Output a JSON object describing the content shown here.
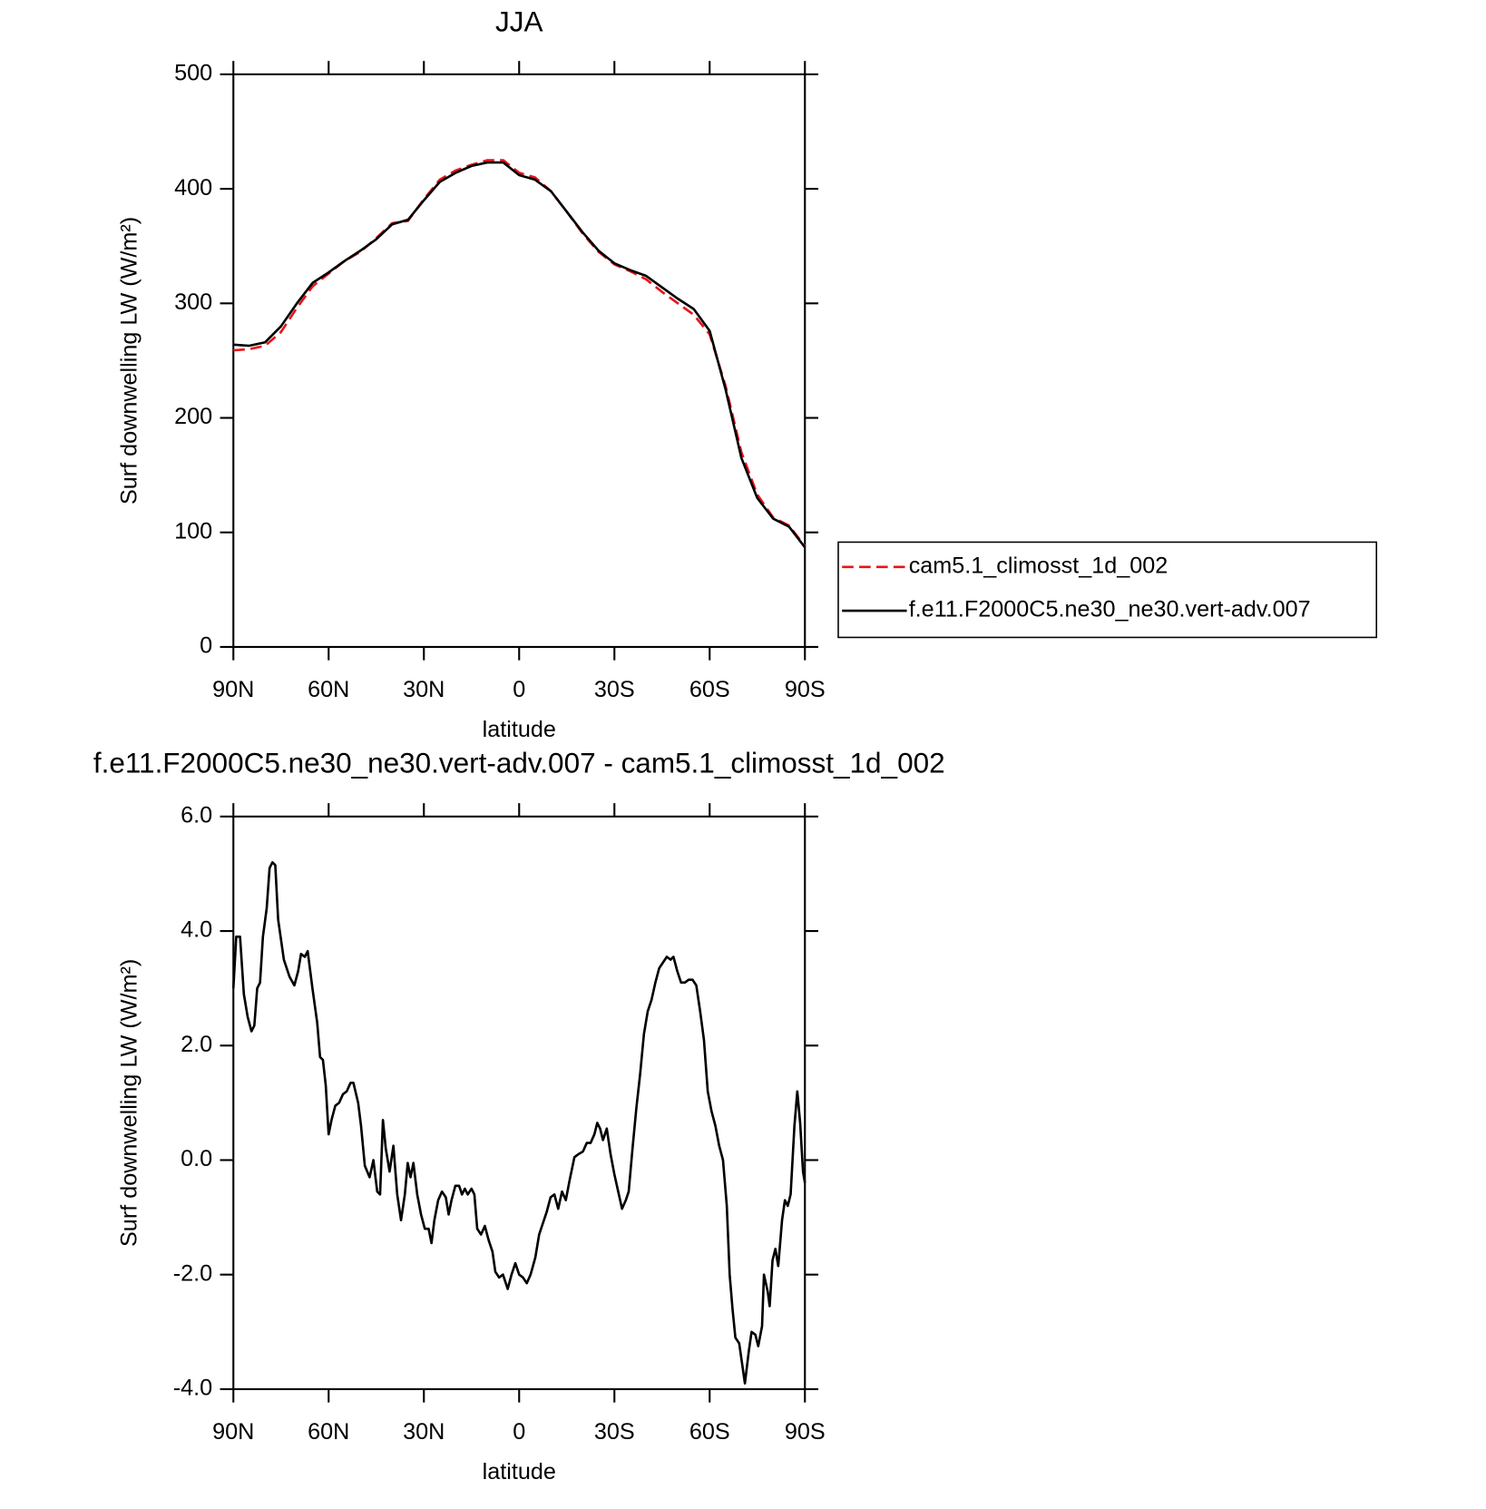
{
  "chart_data": [
    {
      "type": "line",
      "title": "JJA",
      "xlabel": "latitude",
      "ylabel": "Surf downwelling LW (W/m²)",
      "x": [
        90,
        85,
        80,
        75,
        70,
        65,
        60,
        55,
        50,
        45,
        40,
        35,
        30,
        25,
        20,
        15,
        10,
        5,
        0,
        -5,
        -10,
        -15,
        -20,
        -25,
        -30,
        -35,
        -40,
        -45,
        -50,
        -55,
        -60,
        -65,
        -70,
        -75,
        -80,
        -85,
        -90
      ],
      "series": [
        {
          "name": "cam5.1_climosst_1d_002",
          "color": "#e8141b",
          "linestyle": "dashed",
          "values": [
            259,
            260,
            263,
            275,
            296,
            315,
            326,
            337,
            345,
            357,
            370,
            372,
            391,
            408,
            416,
            421,
            425,
            425,
            414,
            410,
            398,
            380,
            361,
            345,
            334,
            328,
            321,
            310,
            300,
            290,
            273,
            228,
            170,
            133,
            113,
            106,
            88
          ]
        },
        {
          "name": "f.e11.F2000C5.ne30_ne30.vert-adv.007",
          "color": "#000000",
          "linestyle": "solid",
          "values": [
            264,
            263,
            266,
            280,
            300,
            318,
            327,
            337,
            346,
            356,
            369,
            373,
            390,
            406,
            414,
            420,
            423,
            423,
            412,
            408,
            398,
            380,
            362,
            346,
            335,
            329,
            324,
            314,
            304,
            295,
            276,
            225,
            165,
            130,
            112,
            105,
            87
          ]
        }
      ],
      "xlim": [
        90,
        -90
      ],
      "xticks": [
        {
          "value": 90,
          "label": "90N"
        },
        {
          "value": 60,
          "label": "60N"
        },
        {
          "value": 30,
          "label": "30N"
        },
        0,
        {
          "value": -30,
          "label": "30S"
        },
        {
          "value": -60,
          "label": "60S"
        },
        {
          "value": -90,
          "label": "90S"
        }
      ],
      "ylim": [
        0,
        500
      ],
      "yticks": [
        0,
        100,
        200,
        300,
        400,
        500
      ],
      "legend": "right"
    },
    {
      "type": "line",
      "title": "f.e11.F2000C5.ne30_ne30.vert-adv.007 - cam5.1_climosst_1d_002",
      "xlabel": "latitude",
      "ylabel": "Surf downwelling LW (W/m²)",
      "x": [
        90,
        89.1,
        87.9,
        86.7,
        85.5,
        84.3,
        83.4,
        82.5,
        81.6,
        80.7,
        79.5,
        78.6,
        77.7,
        76.8,
        75.9,
        74.1,
        72.3,
        70.8,
        69.6,
        68.7,
        67.5,
        66.6,
        65.1,
        63.6,
        62.7,
        61.8,
        60.9,
        60,
        59.1,
        57.9,
        56.7,
        55.5,
        54.3,
        53.1,
        52.2,
        50.7,
        49.8,
        48.6,
        47.1,
        45.9,
        44.7,
        43.8,
        42.9,
        42,
        40.8,
        39.6,
        38.4,
        37.2,
        36,
        35.1,
        34.2,
        33.3,
        32.1,
        30.9,
        29.7,
        28.5,
        27.6,
        26.7,
        25.5,
        24.3,
        23.1,
        22.2,
        21.3,
        20.1,
        18.9,
        18,
        17.1,
        16.2,
        15,
        14.1,
        13.2,
        12,
        10.8,
        9.6,
        8.4,
        7.5,
        6.3,
        5.1,
        3.6,
        2.4,
        1.2,
        0,
        -1.2,
        -2.4,
        -3.6,
        -5.1,
        -6.3,
        -7.5,
        -8.7,
        -9.9,
        -11.1,
        -12.3,
        -13.5,
        -14.7,
        -15.9,
        -17.4,
        -18.6,
        -20.1,
        -21.3,
        -22.5,
        -23.7,
        -24.6,
        -25.5,
        -26.4,
        -27.6,
        -28.8,
        -30,
        -31.2,
        -32.4,
        -33.6,
        -34.5,
        -35.7,
        -36.9,
        -38.1,
        -39.3,
        -40.5,
        -41.7,
        -42.9,
        -44.1,
        -45.3,
        -46.5,
        -47.7,
        -48.6,
        -49.8,
        -51,
        -52.2,
        -53.4,
        -54.6,
        -55.8,
        -57,
        -58.2,
        -59.4,
        -60.6,
        -61.8,
        -63,
        -64.2,
        -65.4,
        -66.3,
        -67.2,
        -68.1,
        -69.3,
        -70.2,
        -71.1,
        -72.3,
        -73.2,
        -74.4,
        -75.3,
        -76.5,
        -77.1,
        -78.3,
        -78.9,
        -79.8,
        -80.7,
        -81.6,
        -82.8,
        -83.7,
        -84.6,
        -85.5,
        -86.7,
        -87.6,
        -88.5,
        -89.4,
        -90
      ],
      "values": [
        3.0,
        3.9,
        3.9,
        2.9,
        2.5,
        2.25,
        2.35,
        3.0,
        3.1,
        3.9,
        4.4,
        5.1,
        5.2,
        5.15,
        4.2,
        3.5,
        3.2,
        3.05,
        3.3,
        3.6,
        3.55,
        3.65,
        3.0,
        2.4,
        1.8,
        1.75,
        1.3,
        0.45,
        0.7,
        0.95,
        1.0,
        1.15,
        1.2,
        1.35,
        1.35,
        1.0,
        0.6,
        -0.1,
        -0.3,
        0.0,
        -0.55,
        -0.6,
        0.7,
        0.2,
        -0.2,
        0.25,
        -0.6,
        -1.05,
        -0.6,
        -0.05,
        -0.3,
        -0.05,
        -0.6,
        -0.95,
        -1.2,
        -1.2,
        -1.45,
        -1.05,
        -0.7,
        -0.55,
        -0.65,
        -0.95,
        -0.7,
        -0.45,
        -0.45,
        -0.6,
        -0.5,
        -0.6,
        -0.5,
        -0.6,
        -1.2,
        -1.3,
        -1.15,
        -1.4,
        -1.6,
        -1.95,
        -2.05,
        -2.0,
        -2.25,
        -2.0,
        -1.8,
        -2.0,
        -2.05,
        -2.15,
        -2.0,
        -1.7,
        -1.3,
        -1.1,
        -0.9,
        -0.65,
        -0.6,
        -0.85,
        -0.55,
        -0.7,
        -0.35,
        0.05,
        0.1,
        0.15,
        0.3,
        0.3,
        0.45,
        0.65,
        0.55,
        0.35,
        0.55,
        0.1,
        -0.25,
        -0.55,
        -0.85,
        -0.7,
        -0.55,
        0.2,
        0.9,
        1.5,
        2.2,
        2.6,
        2.8,
        3.1,
        3.35,
        3.45,
        3.55,
        3.5,
        3.55,
        3.3,
        3.1,
        3.1,
        3.15,
        3.15,
        3.05,
        2.6,
        2.1,
        1.2,
        0.85,
        0.6,
        0.25,
        0.0,
        -0.8,
        -2.0,
        -2.6,
        -3.1,
        -3.2,
        -3.55,
        -3.9,
        -3.35,
        -3.0,
        -3.05,
        -3.25,
        -2.9,
        -2.0,
        -2.3,
        -2.55,
        -1.75,
        -1.55,
        -1.85,
        -1.05,
        -0.7,
        -0.8,
        -0.6,
        0.6,
        1.2,
        0.65,
        -0.2,
        -0.4
      ],
      "color": "#000000",
      "xlim": [
        90,
        -90
      ],
      "xticks": [
        {
          "value": 90,
          "label": "90N"
        },
        {
          "value": 60,
          "label": "60N"
        },
        {
          "value": 30,
          "label": "30N"
        },
        0,
        {
          "value": -30,
          "label": "30S"
        },
        {
          "value": -60,
          "label": "60S"
        },
        {
          "value": -90,
          "label": "90S"
        }
      ],
      "ylim": [
        -4,
        6
      ],
      "yticks": [
        {
          "value": -4,
          "label": "-4.0"
        },
        {
          "value": -2,
          "label": "-2.0"
        },
        {
          "value": 0,
          "label": "0.0"
        },
        {
          "value": 2,
          "label": "2.0"
        },
        {
          "value": 4,
          "label": "4.0"
        },
        {
          "value": 6,
          "label": "6.0"
        }
      ]
    }
  ]
}
